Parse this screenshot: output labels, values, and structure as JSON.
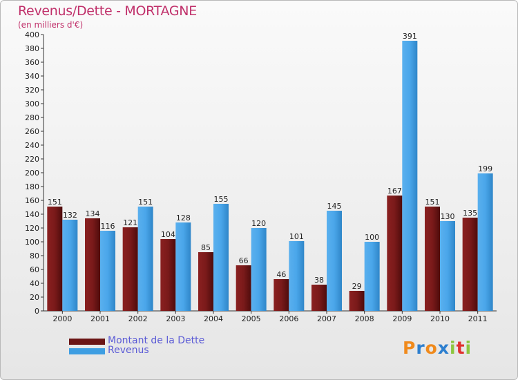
{
  "header": {
    "title": "Revenus/Dette - MORTAGNE",
    "subtitle": "(en milliers d'€)"
  },
  "legend": {
    "dette": "Montant de la Dette",
    "revenus": "Revenus"
  },
  "logo": {
    "letters": [
      "P",
      "r",
      "o",
      "x",
      "i",
      "t",
      "i"
    ],
    "colors": [
      "#f08a1c",
      "#2d7fcf",
      "#f08a1c",
      "#2d7fcf",
      "#8dc63f",
      "#e0312f",
      "#8dc63f"
    ]
  },
  "colors": {
    "dette": "#6b1414",
    "revenus": "#3e9ee2",
    "title": "#c0306a",
    "legend_text": "#5b5bd6"
  },
  "chart_data": {
    "type": "bar",
    "title": "Revenus/Dette - MORTAGNE",
    "ylabel": "(en milliers d'€)",
    "xlabel": "",
    "categories": [
      "2000",
      "2001",
      "2002",
      "2003",
      "2004",
      "2005",
      "2006",
      "2007",
      "2008",
      "2009",
      "2010",
      "2011"
    ],
    "series": [
      {
        "name": "Montant de la Dette",
        "values": [
          151,
          134,
          121,
          104,
          85,
          66,
          46,
          38,
          29,
          167,
          151,
          135
        ]
      },
      {
        "name": "Revenus",
        "values": [
          132,
          116,
          151,
          128,
          155,
          120,
          101,
          145,
          100,
          391,
          130,
          199
        ]
      }
    ],
    "ylim": [
      0,
      400
    ],
    "yticks": [
      0,
      20,
      40,
      60,
      80,
      100,
      120,
      140,
      160,
      180,
      200,
      220,
      240,
      260,
      280,
      300,
      320,
      340,
      360,
      380,
      400
    ],
    "grid": false,
    "legend_position": "bottom-left"
  }
}
